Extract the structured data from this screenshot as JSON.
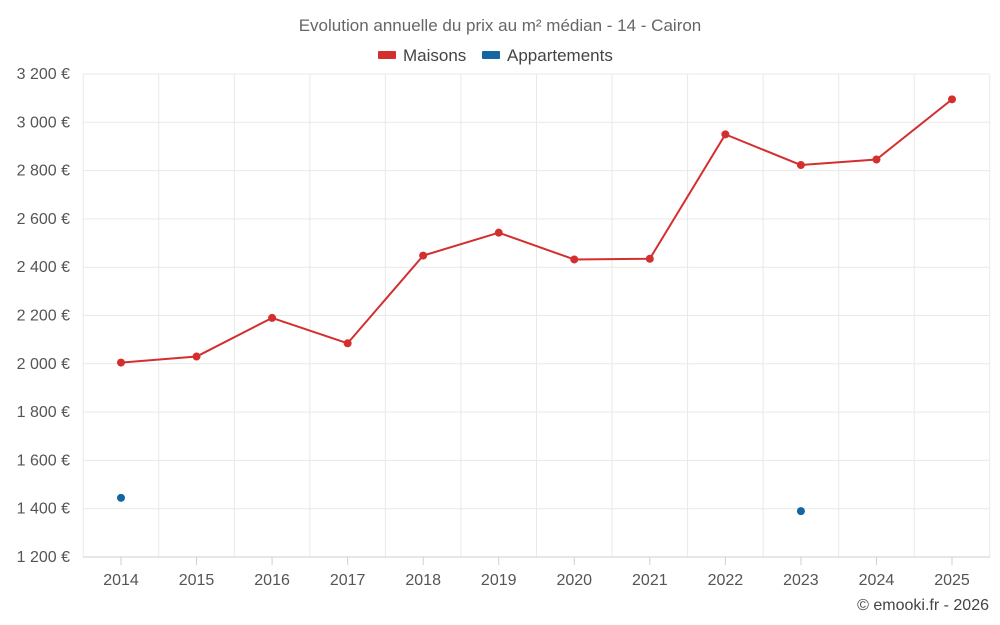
{
  "chart_data": {
    "type": "line",
    "title": "Evolution annuelle du prix au m² médian - 14 - Cairon",
    "categories": [
      "2014",
      "2015",
      "2016",
      "2017",
      "2018",
      "2019",
      "2020",
      "2021",
      "2022",
      "2023",
      "2024",
      "2025"
    ],
    "series": [
      {
        "name": "Maisons",
        "color": "#d32f2f",
        "values": [
          2005,
          2030,
          2190,
          2085,
          2448,
          2543,
          2432,
          2435,
          2950,
          2823,
          2846,
          3095
        ]
      },
      {
        "name": "Appartements",
        "color": "#1565a0",
        "values": [
          1445,
          null,
          null,
          null,
          null,
          null,
          null,
          null,
          null,
          1390,
          null,
          null
        ]
      }
    ],
    "ylim": [
      1200,
      3200
    ],
    "yticks": [
      1200,
      1400,
      1600,
      1800,
      2000,
      2200,
      2400,
      2600,
      2800,
      3000,
      3200
    ],
    "ytick_labels": [
      "1 200 €",
      "1 400 €",
      "1 600 €",
      "1 800 €",
      "2 000 €",
      "2 200 €",
      "2 400 €",
      "2 600 €",
      "2 800 €",
      "3 000 €",
      "3 200 €"
    ],
    "grid": true,
    "legend_position": "top-center"
  },
  "credit": "© emooki.fr - 2026"
}
